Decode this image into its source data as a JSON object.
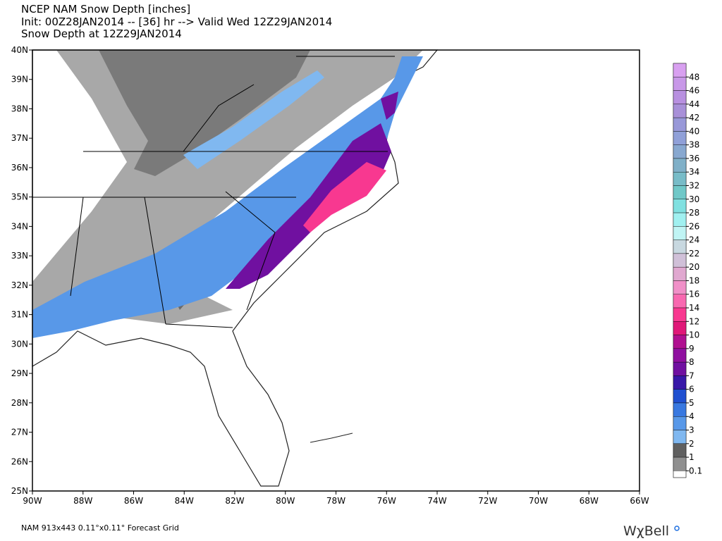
{
  "header": {
    "line1": "NCEP NAM Snow Depth [inches]",
    "line2": "Init: 00Z28JAN2014 -- [36] hr --> Valid Wed 12Z29JAN2014",
    "line3": "Snow Depth at 12Z29JAN2014"
  },
  "map": {
    "lat_labels": [
      "40N",
      "39N",
      "38N",
      "37N",
      "36N",
      "35N",
      "34N",
      "33N",
      "32N",
      "31N",
      "30N",
      "29N",
      "28N",
      "27N",
      "26N",
      "25N"
    ],
    "lon_labels": [
      "90W",
      "88W",
      "86W",
      "84W",
      "82W",
      "80W",
      "78W",
      "76W",
      "74W",
      "72W",
      "70W",
      "68W",
      "66W"
    ]
  },
  "legend": {
    "levels": [
      {
        "label": "48",
        "color": "#d8a0f0"
      },
      {
        "label": "46",
        "color": "#c898e8"
      },
      {
        "label": "44",
        "color": "#b890e0"
      },
      {
        "label": "42",
        "color": "#a890d8"
      },
      {
        "label": "40",
        "color": "#9898d8"
      },
      {
        "label": "38",
        "color": "#90a0d8"
      },
      {
        "label": "36",
        "color": "#88a8d0"
      },
      {
        "label": "34",
        "color": "#80b0c8"
      },
      {
        "label": "32",
        "color": "#78bcc8"
      },
      {
        "label": "30",
        "color": "#70c8c8"
      },
      {
        "label": "28",
        "color": "#80e0e0"
      },
      {
        "label": "26",
        "color": "#a0f0f0"
      },
      {
        "label": "24",
        "color": "#c0f4f4"
      },
      {
        "label": "22",
        "color": "#c8d8e0"
      },
      {
        "label": "20",
        "color": "#d0c0d8"
      },
      {
        "label": "18",
        "color": "#e0a8d0"
      },
      {
        "label": "16",
        "color": "#f090c8"
      },
      {
        "label": "14",
        "color": "#f868b0"
      },
      {
        "label": "12",
        "color": "#f83890"
      },
      {
        "label": "10",
        "color": "#e01878"
      },
      {
        "label": "9",
        "color": "#b01090"
      },
      {
        "label": "8",
        "color": "#9010a0"
      },
      {
        "label": "7",
        "color": "#7010a0"
      },
      {
        "label": "6",
        "color": "#3818a8"
      },
      {
        "label": "5",
        "color": "#2050d0"
      },
      {
        "label": "4",
        "color": "#3878e0"
      },
      {
        "label": "3",
        "color": "#5898e8"
      },
      {
        "label": "2",
        "color": "#80b8f0"
      },
      {
        "label": "1",
        "color": "#606060"
      },
      {
        "label": "0.1",
        "color": "#909090"
      }
    ]
  },
  "footer": {
    "grid": "NAM 913x443 0.11°x0.11° Forecast Grid",
    "logo": "WχBell"
  }
}
